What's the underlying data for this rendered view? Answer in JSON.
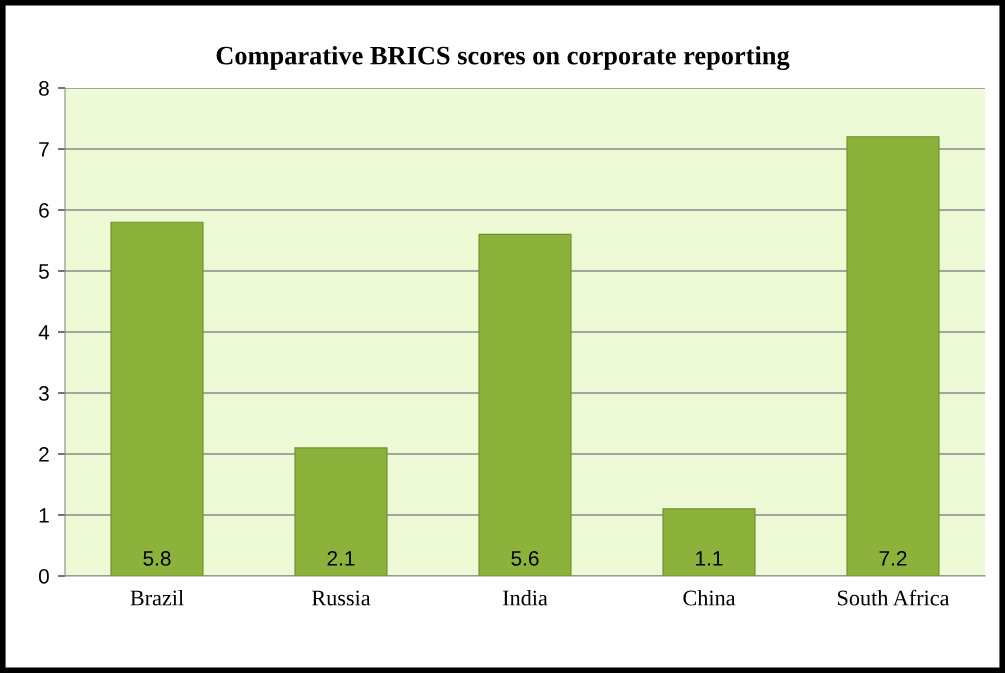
{
  "chart_data": {
    "type": "bar",
    "title": "Comparative BRICS scores on corporate reporting",
    "categories": [
      "Brazil",
      "Russia",
      "India",
      "China",
      "South Africa"
    ],
    "values": [
      5.8,
      2.1,
      5.6,
      1.1,
      7.2
    ],
    "color": "#8cb23c",
    "ylim": [
      0,
      8
    ],
    "yticks": [
      0,
      1,
      2,
      3,
      4,
      5,
      6,
      7,
      8
    ],
    "grid": "y",
    "data_labels": true
  }
}
